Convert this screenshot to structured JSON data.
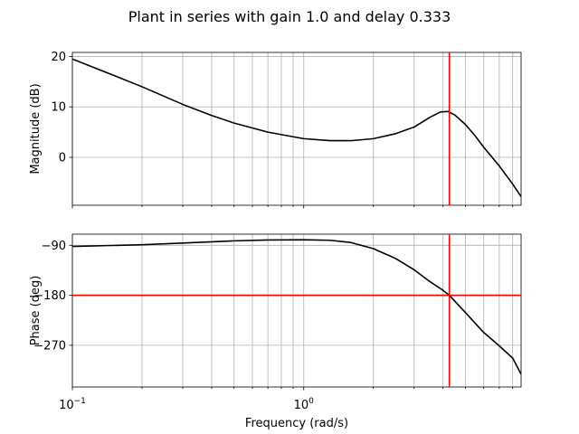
{
  "title": "Plant in series with gain 1.0 and delay 0.333",
  "chart_data": [
    {
      "type": "line",
      "panel": "magnitude",
      "xscale": "log",
      "xlim": [
        0.1,
        8.7
      ],
      "ylim": [
        -9.5,
        20.8
      ],
      "ylabel": "Magnitude (dB)",
      "yticks": [
        0,
        10,
        20
      ],
      "ytick_labels": [
        "0",
        "10",
        "20"
      ],
      "grid": true,
      "series": [
        {
          "color": "#000000",
          "x": [
            0.1,
            0.15,
            0.2,
            0.3,
            0.4,
            0.5,
            0.7,
            1.0,
            1.3,
            1.6,
            2.0,
            2.5,
            3.0,
            3.5,
            3.9,
            4.2,
            4.5,
            5.0,
            5.5,
            6.0,
            7.0,
            8.0,
            8.7
          ],
          "y": [
            19.5,
            16.3,
            14.0,
            10.5,
            8.3,
            6.8,
            5.0,
            3.7,
            3.3,
            3.3,
            3.7,
            4.7,
            6.0,
            7.9,
            9.0,
            9.1,
            8.4,
            6.5,
            4.3,
            2.0,
            -1.7,
            -5.3,
            -7.8
          ]
        }
      ],
      "vlines": [
        {
          "x": 4.26,
          "color": "#ff0000"
        }
      ]
    },
    {
      "type": "line",
      "panel": "phase",
      "xscale": "log",
      "xlim": [
        0.1,
        8.7
      ],
      "ylim": [
        -345,
        -70
      ],
      "xlabel": "Frequency (rad/s)",
      "ylabel": "Phase (deg)",
      "yticks": [
        -90,
        -180,
        -270
      ],
      "ytick_labels": [
        "−90",
        "−180",
        "−270"
      ],
      "xticks": [
        0.1,
        1.0
      ],
      "xtick_labels": [
        {
          "base": "10",
          "exp": "−1"
        },
        {
          "base": "10",
          "exp": "0"
        }
      ],
      "grid": true,
      "series": [
        {
          "color": "#000000",
          "x": [
            0.1,
            0.2,
            0.3,
            0.5,
            0.7,
            1.0,
            1.3,
            1.6,
            2.0,
            2.5,
            3.0,
            3.5,
            4.0,
            4.26,
            4.6,
            5.0,
            5.5,
            6.0,
            7.0,
            8.0,
            8.7
          ],
          "y": [
            -92,
            -89,
            -86,
            -82,
            -80.5,
            -80,
            -81,
            -85,
            -96,
            -114,
            -134,
            -155,
            -171,
            -180,
            -195,
            -211,
            -230,
            -247,
            -271,
            -293,
            -322
          ]
        }
      ],
      "hlines": [
        {
          "y": -180,
          "color": "#ff0000"
        }
      ],
      "vlines": [
        {
          "x": 4.26,
          "color": "#ff0000"
        }
      ]
    }
  ]
}
